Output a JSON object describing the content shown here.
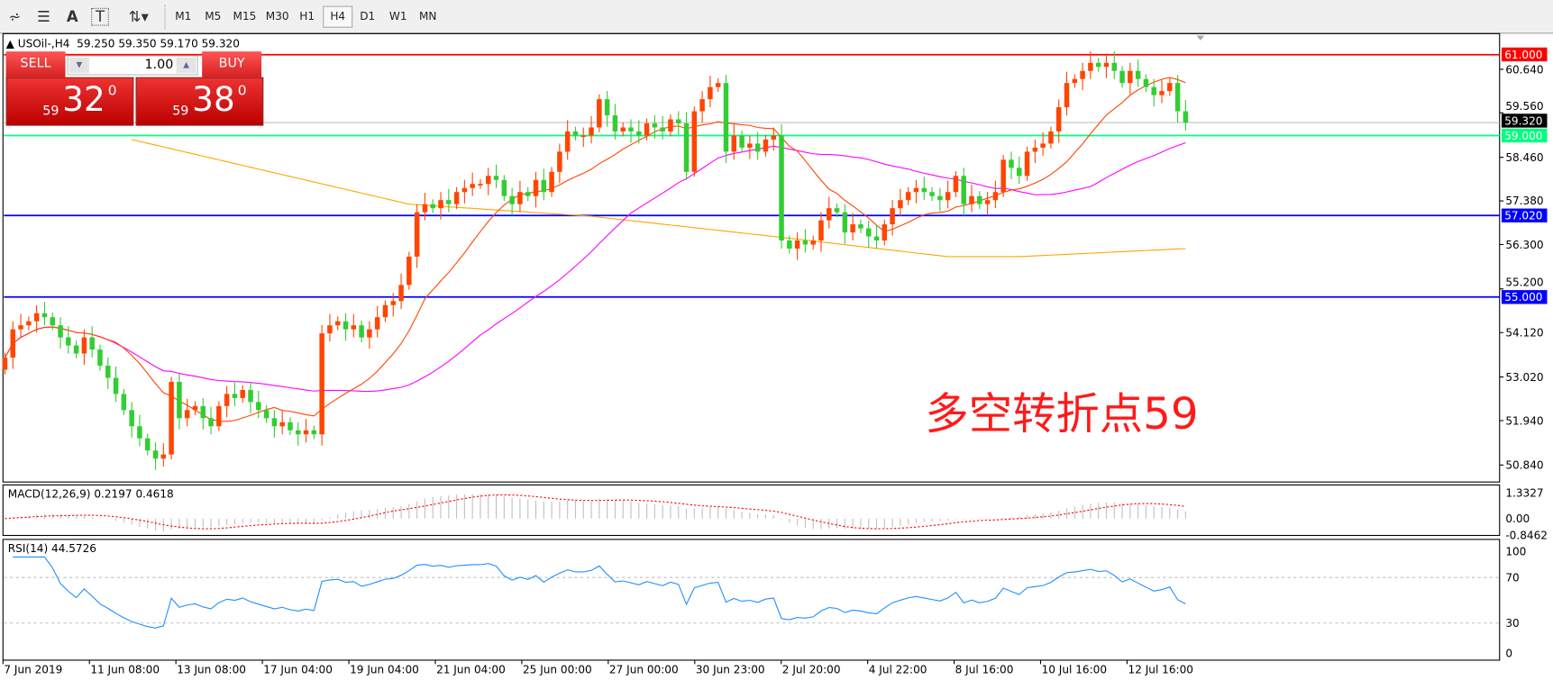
{
  "toolbar": {
    "icons": [
      "elliott-wave-icon",
      "fibonacci-fan-icon",
      "text-icon",
      "text-label-icon",
      "arrows-icon"
    ],
    "timeframes": [
      "M1",
      "M5",
      "M15",
      "M30",
      "H1",
      "H4",
      "D1",
      "W1",
      "MN"
    ],
    "active_timeframe": "H4"
  },
  "header": {
    "symbol_timeframe": "USOil-,H4",
    "ohlc": "59.250 59.350 59.170 59.320"
  },
  "trade_panel": {
    "sell_label": "SELL",
    "buy_label": "BUY",
    "lot": "1.00",
    "sell_price_prefix": "59",
    "sell_price_big": "32",
    "sell_price_sup": "0",
    "buy_price_prefix": "59",
    "buy_price_big": "38",
    "buy_price_sup": "0"
  },
  "annotation": "多空转折点59",
  "chart_data": {
    "type": "candlestick",
    "title": "USOil-,H4",
    "colors": {
      "bull": "#ff4500",
      "bear": "#32cd32",
      "ma_fast": "#ff4500",
      "ma_mid": "#ff00ff",
      "ma_slow": "#ffa500"
    },
    "ylim": [
      50.3,
      61.4
    ],
    "y_ticks": [
      "60.640",
      "59.560",
      "58.460",
      "57.380",
      "56.300",
      "55.200",
      "54.120",
      "53.020",
      "51.940",
      "50.840"
    ],
    "x_tick_labels": [
      "7 Jun 2019",
      "11 Jun 08:00",
      "13 Jun 08:00",
      "17 Jun 04:00",
      "19 Jun 04:00",
      "21 Jun 04:00",
      "25 Jun 00:00",
      "27 Jun 00:00",
      "30 Jun 23:00",
      "2 Jul 20:00",
      "4 Jul 22:00",
      "8 Jul 16:00",
      "10 Jul 16:00",
      "12 Jul 16:00"
    ],
    "close": [
      53.5,
      54.2,
      54.3,
      54.4,
      54.6,
      54.5,
      54.3,
      54.0,
      53.8,
      53.6,
      54.0,
      53.7,
      53.3,
      53.0,
      52.6,
      52.2,
      51.8,
      51.5,
      51.2,
      51.0,
      51.1,
      52.9,
      52.0,
      52.2,
      52.3,
      52.0,
      51.8,
      52.3,
      52.6,
      52.5,
      52.7,
      52.4,
      52.2,
      52.0,
      51.8,
      51.9,
      51.7,
      51.6,
      51.7,
      51.6,
      54.1,
      54.3,
      54.4,
      54.2,
      54.3,
      54.0,
      54.2,
      54.5,
      54.8,
      54.9,
      55.3,
      56.0,
      57.1,
      57.3,
      57.2,
      57.4,
      57.3,
      57.6,
      57.7,
      57.8,
      57.8,
      58.0,
      57.9,
      57.5,
      57.3,
      57.6,
      57.5,
      57.9,
      57.6,
      58.1,
      58.6,
      59.1,
      59.0,
      59.0,
      59.2,
      59.9,
      59.5,
      59.1,
      59.2,
      59.1,
      59.0,
      59.3,
      59.2,
      59.1,
      59.4,
      59.3,
      58.1,
      59.6,
      59.9,
      60.2,
      60.3,
      58.6,
      59.0,
      58.7,
      58.8,
      58.6,
      58.9,
      59.0,
      56.4,
      56.2,
      56.4,
      56.3,
      56.4,
      56.9,
      57.2,
      57.1,
      56.6,
      56.8,
      56.7,
      56.5,
      56.4,
      56.8,
      57.2,
      57.4,
      57.6,
      57.7,
      57.6,
      57.5,
      57.4,
      57.6,
      58.0,
      57.3,
      57.5,
      57.3,
      57.4,
      57.6,
      58.4,
      58.2,
      58.0,
      58.6,
      58.7,
      58.8,
      59.1,
      59.7,
      60.3,
      60.4,
      60.6,
      60.8,
      60.7,
      60.8,
      60.6,
      60.3,
      60.6,
      60.4,
      60.2,
      60.0,
      60.1,
      60.3,
      59.6,
      59.32
    ],
    "ma_slow_points": [
      [
        16,
        58.9
      ],
      [
        51,
        57.3
      ],
      [
        74,
        57.0
      ],
      [
        97,
        56.5
      ],
      [
        119,
        56.0
      ],
      [
        128,
        56.0
      ],
      [
        149,
        56.2
      ]
    ],
    "hlines": [
      {
        "value": "61.000",
        "color": "#ff0000"
      },
      {
        "value": "59.320",
        "color": "#c0c0c0",
        "label_bg": "#000000"
      },
      {
        "value": "59.000",
        "color": "#00ff7f"
      },
      {
        "value": "57.020",
        "color": "#0000ff"
      },
      {
        "value": "55.000",
        "color": "#0000ff"
      }
    ],
    "macd": {
      "label": "MACD(12,26,9) 0.2197 0.4618",
      "ticks": [
        "1.3327",
        "0.00",
        "-0.8462"
      ]
    },
    "rsi": {
      "label": "RSI(14) 44.5726",
      "ticks": [
        "100",
        "70",
        "30",
        "0"
      ],
      "levels": [
        70,
        30
      ],
      "color": "#1e90ff"
    }
  }
}
